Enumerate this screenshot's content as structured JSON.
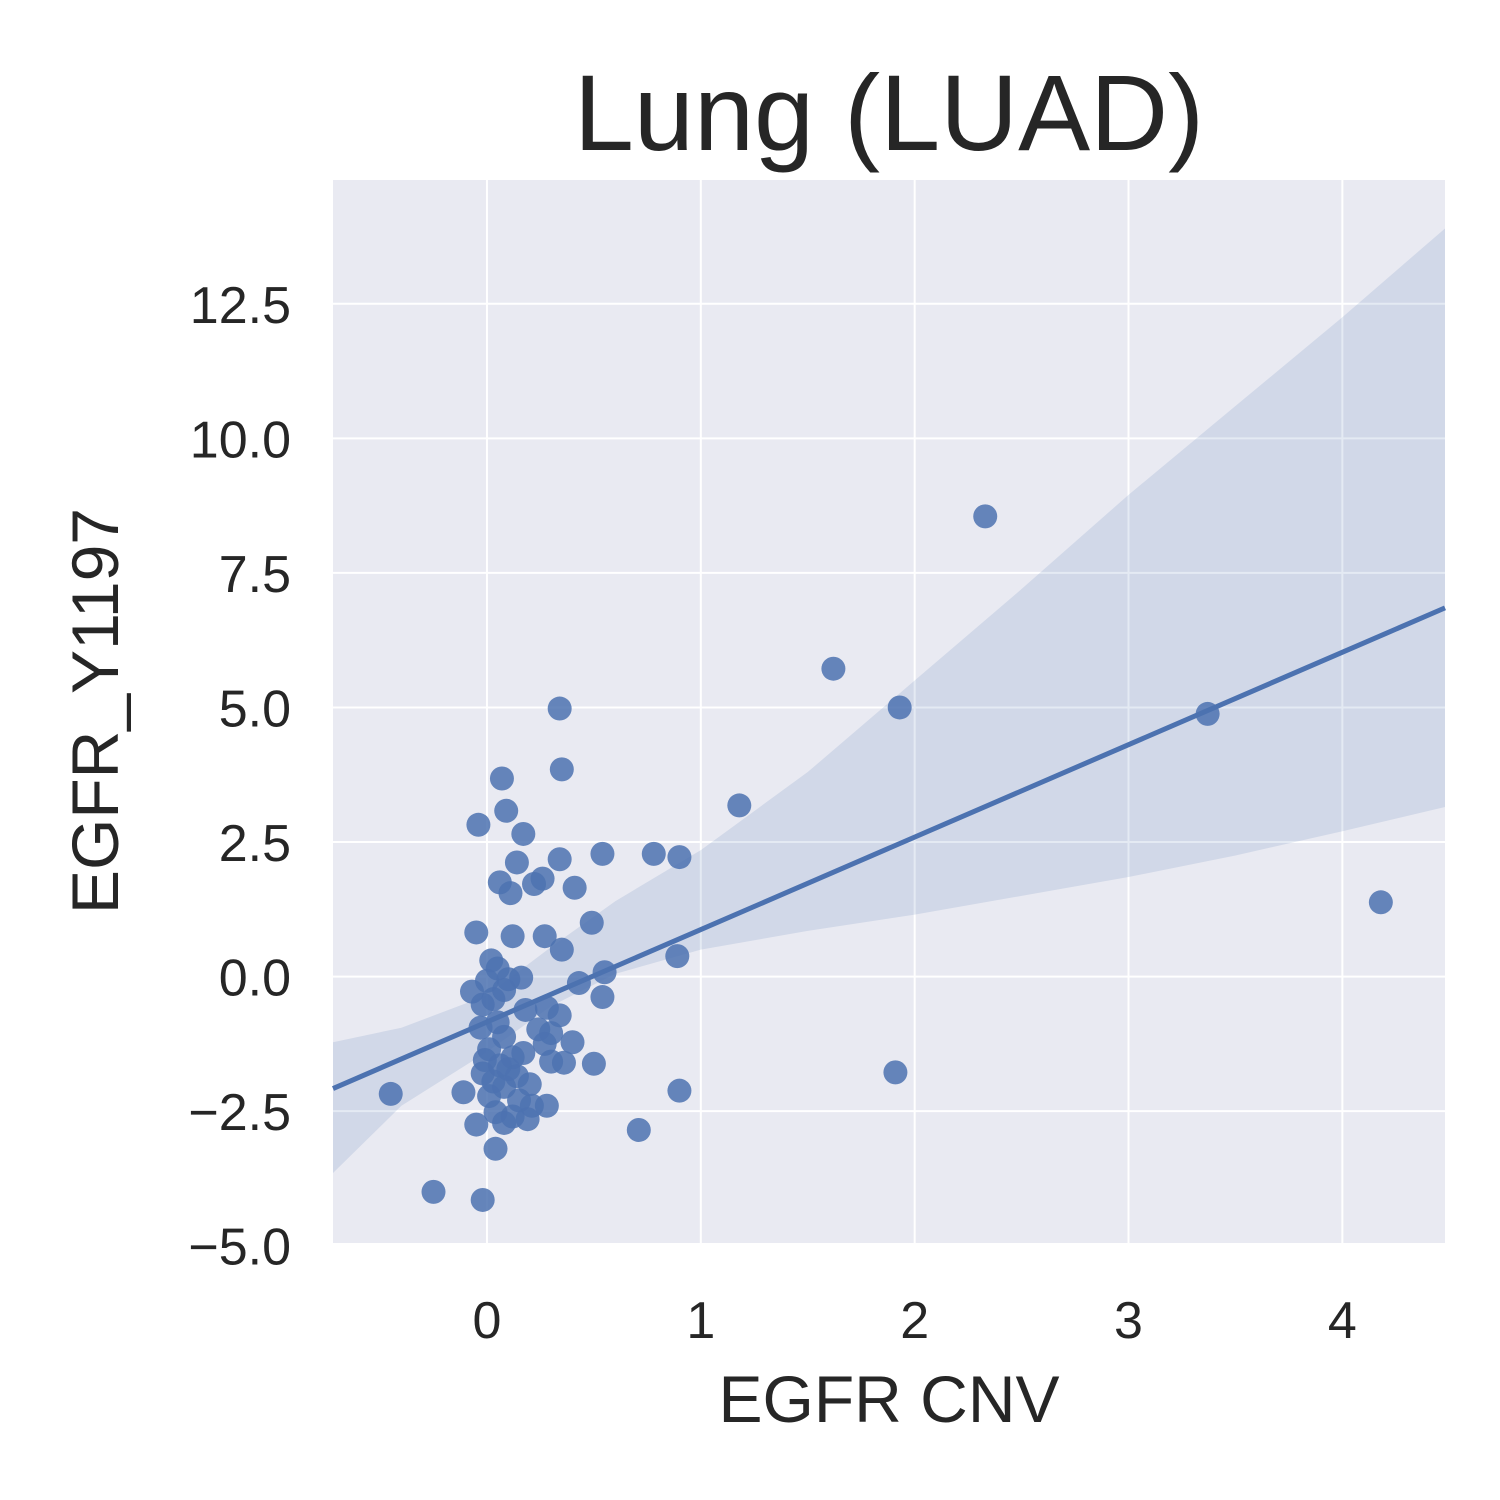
{
  "chart_data": {
    "type": "scatter",
    "title": "Lung (LUAD)",
    "xlabel": "EGFR CNV",
    "ylabel": "EGFR_Y1197",
    "xlim": [
      -0.72,
      4.48
    ],
    "ylim": [
      -4.95,
      14.8
    ],
    "xticks": [
      0,
      1,
      2,
      3,
      4
    ],
    "xtick_labels": [
      "0",
      "1",
      "2",
      "3",
      "4"
    ],
    "yticks": [
      -5.0,
      -2.5,
      0.0,
      2.5,
      5.0,
      7.5,
      10.0,
      12.5
    ],
    "ytick_labels": [
      "−5.0",
      "−2.5",
      "0.0",
      "2.5",
      "5.0",
      "7.5",
      "10.0",
      "12.5"
    ],
    "grid": true,
    "background_color": "#e9eaf2",
    "point_color": "#4c72b0",
    "band_color": "#4c72b0",
    "regression_line": {
      "x": [
        -0.72,
        4.48
      ],
      "y": [
        -2.08,
        6.85
      ]
    },
    "confidence_band": {
      "x": [
        -0.72,
        -0.4,
        0.0,
        0.3,
        0.6,
        1.0,
        1.5,
        2.0,
        2.5,
        3.0,
        3.5,
        4.0,
        4.48
      ],
      "lower": [
        -3.65,
        -2.4,
        -1.4,
        -0.55,
        0.05,
        0.5,
        0.85,
        1.15,
        1.5,
        1.85,
        2.25,
        2.7,
        3.15
      ],
      "upper": [
        -1.22,
        -0.95,
        -0.35,
        0.55,
        1.4,
        2.35,
        3.8,
        5.5,
        7.2,
        8.95,
        10.6,
        12.25,
        13.9
      ]
    },
    "points": [
      {
        "x": 2.33,
        "y": 8.55
      },
      {
        "x": 1.62,
        "y": 5.72
      },
      {
        "x": 1.93,
        "y": 5.0
      },
      {
        "x": 3.37,
        "y": 4.88
      },
      {
        "x": 4.18,
        "y": 1.38
      },
      {
        "x": 1.91,
        "y": -1.78
      },
      {
        "x": 1.18,
        "y": 3.18
      },
      {
        "x": 0.9,
        "y": 2.22
      },
      {
        "x": 0.78,
        "y": 2.28
      },
      {
        "x": 0.89,
        "y": 0.38
      },
      {
        "x": 0.9,
        "y": -2.12
      },
      {
        "x": 0.71,
        "y": -2.85
      },
      {
        "x": 0.34,
        "y": 4.98
      },
      {
        "x": 0.35,
        "y": 3.85
      },
      {
        "x": 0.07,
        "y": 3.68
      },
      {
        "x": 0.09,
        "y": 3.08
      },
      {
        "x": -0.04,
        "y": 2.82
      },
      {
        "x": 0.17,
        "y": 2.65
      },
      {
        "x": 0.34,
        "y": 2.18
      },
      {
        "x": 0.54,
        "y": 2.28
      },
      {
        "x": 0.14,
        "y": 2.12
      },
      {
        "x": 0.26,
        "y": 1.82
      },
      {
        "x": 0.22,
        "y": 1.72
      },
      {
        "x": 0.06,
        "y": 1.75
      },
      {
        "x": 0.41,
        "y": 1.65
      },
      {
        "x": 0.11,
        "y": 1.55
      },
      {
        "x": 0.49,
        "y": 1.0
      },
      {
        "x": -0.05,
        "y": 0.82
      },
      {
        "x": 0.12,
        "y": 0.75
      },
      {
        "x": 0.27,
        "y": 0.75
      },
      {
        "x": 0.35,
        "y": 0.5
      },
      {
        "x": 0.02,
        "y": 0.3
      },
      {
        "x": 0.05,
        "y": 0.15
      },
      {
        "x": 0.55,
        "y": 0.08
      },
      {
        "x": 0.16,
        "y": -0.02
      },
      {
        "x": 0.1,
        "y": -0.05
      },
      {
        "x": 0.0,
        "y": -0.08
      },
      {
        "x": 0.43,
        "y": -0.12
      },
      {
        "x": 0.08,
        "y": -0.25
      },
      {
        "x": -0.07,
        "y": -0.28
      },
      {
        "x": 0.03,
        "y": -0.42
      },
      {
        "x": 0.54,
        "y": -0.38
      },
      {
        "x": -0.02,
        "y": -0.52
      },
      {
        "x": 0.18,
        "y": -0.62
      },
      {
        "x": 0.34,
        "y": -0.72
      },
      {
        "x": 0.28,
        "y": -0.58
      },
      {
        "x": 0.05,
        "y": -0.85
      },
      {
        "x": -0.03,
        "y": -0.95
      },
      {
        "x": 0.24,
        "y": -0.98
      },
      {
        "x": 0.3,
        "y": -1.05
      },
      {
        "x": 0.08,
        "y": -1.12
      },
      {
        "x": 0.4,
        "y": -1.22
      },
      {
        "x": 0.27,
        "y": -1.25
      },
      {
        "x": 0.01,
        "y": -1.35
      },
      {
        "x": 0.17,
        "y": -1.42
      },
      {
        "x": 0.12,
        "y": -1.5
      },
      {
        "x": -0.01,
        "y": -1.55
      },
      {
        "x": 0.3,
        "y": -1.58
      },
      {
        "x": 0.36,
        "y": -1.6
      },
      {
        "x": 0.5,
        "y": -1.62
      },
      {
        "x": 0.06,
        "y": -1.65
      },
      {
        "x": 0.1,
        "y": -1.72
      },
      {
        "x": -0.02,
        "y": -1.8
      },
      {
        "x": 0.14,
        "y": -1.85
      },
      {
        "x": 0.03,
        "y": -1.95
      },
      {
        "x": 0.2,
        "y": -2.0
      },
      {
        "x": 0.08,
        "y": -2.05
      },
      {
        "x": -0.11,
        "y": -2.15
      },
      {
        "x": -0.45,
        "y": -2.18
      },
      {
        "x": 0.01,
        "y": -2.22
      },
      {
        "x": 0.15,
        "y": -2.3
      },
      {
        "x": 0.21,
        "y": -2.4
      },
      {
        "x": 0.28,
        "y": -2.4
      },
      {
        "x": 0.04,
        "y": -2.52
      },
      {
        "x": 0.12,
        "y": -2.6
      },
      {
        "x": 0.19,
        "y": -2.65
      },
      {
        "x": 0.08,
        "y": -2.72
      },
      {
        "x": -0.05,
        "y": -2.75
      },
      {
        "x": 0.04,
        "y": -3.2
      },
      {
        "x": -0.25,
        "y": -4.0
      },
      {
        "x": -0.02,
        "y": -4.15
      }
    ]
  }
}
